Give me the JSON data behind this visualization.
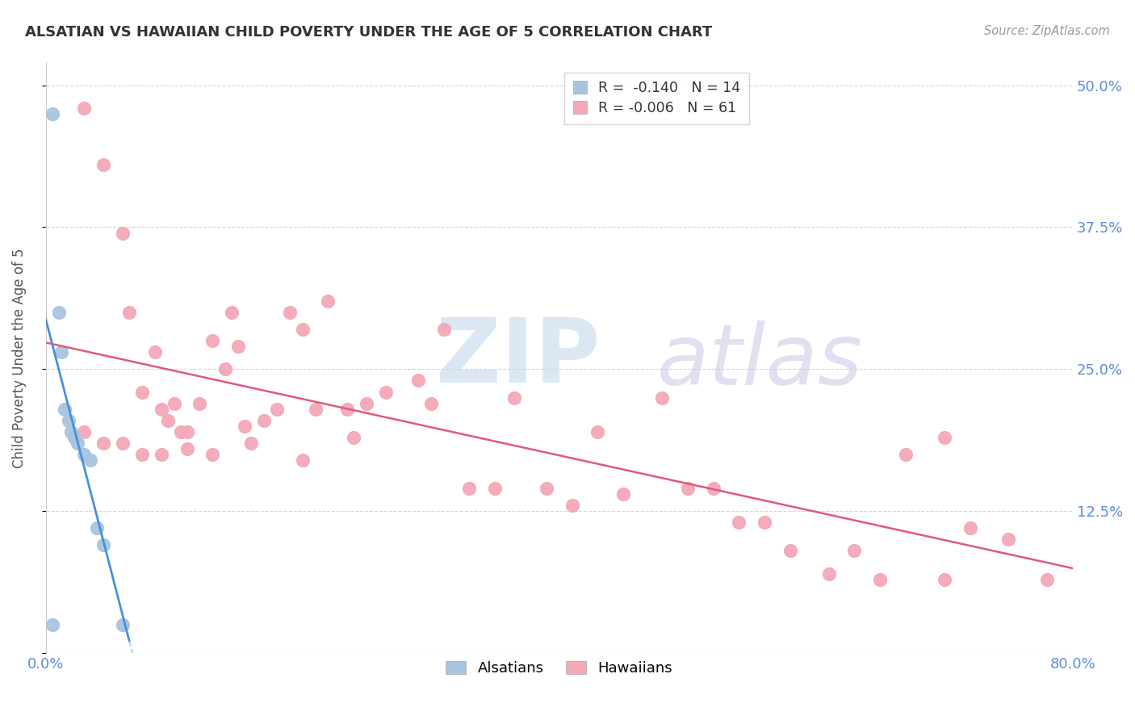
{
  "title": "ALSATIAN VS HAWAIIAN CHILD POVERTY UNDER THE AGE OF 5 CORRELATION CHART",
  "source": "Source: ZipAtlas.com",
  "ylabel": "Child Poverty Under the Age of 5",
  "xlim": [
    0.0,
    0.8
  ],
  "ylim": [
    0.0,
    0.52
  ],
  "yticks": [
    0.0,
    0.125,
    0.25,
    0.375,
    0.5
  ],
  "ytick_labels": [
    "",
    "12.5%",
    "25.0%",
    "37.5%",
    "50.0%"
  ],
  "xticks": [
    0.0,
    0.1,
    0.2,
    0.3,
    0.4,
    0.5,
    0.6,
    0.7,
    0.8
  ],
  "xtick_labels": [
    "0.0%",
    "",
    "",
    "",
    "",
    "",
    "",
    "",
    "80.0%"
  ],
  "alsatian_color": "#a8c4e0",
  "hawaiian_color": "#f4a8b8",
  "regression_alsatian_color": "#4a90d9",
  "regression_hawaiian_color": "#e05a7a",
  "regression_dash_color": "#b8cfe0",
  "alsatian_R": "-0.140",
  "alsatian_N": "14",
  "hawaiian_R": "-0.006",
  "hawaiian_N": "61",
  "alsatian_x": [
    0.005,
    0.01,
    0.012,
    0.015,
    0.018,
    0.02,
    0.022,
    0.025,
    0.03,
    0.035,
    0.04,
    0.045,
    0.06,
    0.005
  ],
  "alsatian_y": [
    0.475,
    0.3,
    0.265,
    0.215,
    0.205,
    0.195,
    0.19,
    0.185,
    0.175,
    0.17,
    0.11,
    0.095,
    0.025,
    0.025
  ],
  "hawaiian_x": [
    0.03,
    0.045,
    0.06,
    0.065,
    0.075,
    0.085,
    0.09,
    0.095,
    0.1,
    0.105,
    0.11,
    0.12,
    0.13,
    0.14,
    0.145,
    0.15,
    0.155,
    0.17,
    0.18,
    0.19,
    0.2,
    0.21,
    0.22,
    0.235,
    0.25,
    0.265,
    0.29,
    0.3,
    0.31,
    0.33,
    0.35,
    0.365,
    0.39,
    0.41,
    0.43,
    0.45,
    0.48,
    0.5,
    0.52,
    0.54,
    0.56,
    0.58,
    0.61,
    0.63,
    0.65,
    0.67,
    0.7,
    0.72,
    0.75,
    0.78,
    0.03,
    0.045,
    0.06,
    0.075,
    0.09,
    0.11,
    0.13,
    0.16,
    0.2,
    0.24,
    0.7
  ],
  "hawaiian_y": [
    0.48,
    0.43,
    0.37,
    0.3,
    0.23,
    0.265,
    0.215,
    0.205,
    0.22,
    0.195,
    0.195,
    0.22,
    0.275,
    0.25,
    0.3,
    0.27,
    0.2,
    0.205,
    0.215,
    0.3,
    0.285,
    0.215,
    0.31,
    0.215,
    0.22,
    0.23,
    0.24,
    0.22,
    0.285,
    0.145,
    0.145,
    0.225,
    0.145,
    0.13,
    0.195,
    0.14,
    0.225,
    0.145,
    0.145,
    0.115,
    0.115,
    0.09,
    0.07,
    0.09,
    0.065,
    0.175,
    0.065,
    0.11,
    0.1,
    0.065,
    0.195,
    0.185,
    0.185,
    0.175,
    0.175,
    0.18,
    0.175,
    0.185,
    0.17,
    0.19,
    0.19
  ]
}
